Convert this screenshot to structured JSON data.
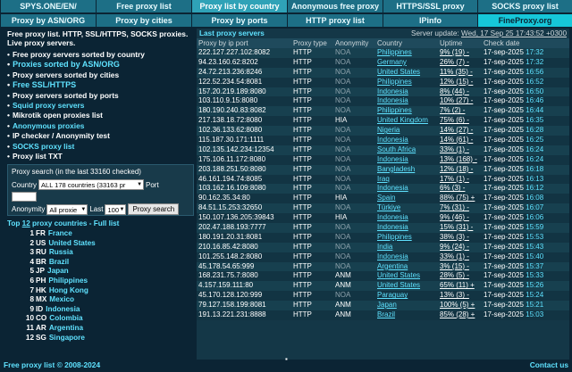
{
  "nav": {
    "row1": [
      "SPYS.ONE/EN/",
      "Free proxy list",
      "Proxy list by country",
      "Anonymous free proxy",
      "HTTPS/SSL proxy",
      "SOCKS proxy list"
    ],
    "row2": [
      "Proxy by ASN/ORG",
      "Proxy by cities",
      "Proxy by ports",
      "HTTP proxy list",
      "IPinfo",
      "FineProxy.org"
    ]
  },
  "intro": "Free proxy list. HTTP, SSL/HTTPS, SOCKS proxies. Live proxy servers.",
  "menu": [
    "Free proxy servers sorted by country",
    "Proxies sorted by ASN/ORG",
    "Proxy servers sorted by cities",
    "Free SSL/HTTPS",
    "Proxy servers sorted by ports",
    "Squid proxy servers",
    "Mikrotik open proxies list",
    "Anonymous proxies",
    "IP checker / Anonymity test",
    "SOCKS proxy list",
    "Proxy list TXT"
  ],
  "search": {
    "header": "Proxy search (in the last 33160 checked)",
    "country_label": "Country",
    "country_value": "ALL 178 countries (33163 pr",
    "port_label": "Port",
    "anonymity_label": "Anonymity",
    "anonymity_value": "All proxie",
    "last_label": "Last",
    "last_value": "100",
    "button": "Proxy search"
  },
  "top": {
    "prefix": "Top ",
    "count": "12",
    "suffix": " proxy countries - Full list",
    "countries": [
      {
        "rank": "1",
        "code": "FR",
        "name": "France"
      },
      {
        "rank": "2",
        "code": "US",
        "name": "United States"
      },
      {
        "rank": "3",
        "code": "RU",
        "name": "Russia"
      },
      {
        "rank": "4",
        "code": "BR",
        "name": "Brazil"
      },
      {
        "rank": "5",
        "code": "JP",
        "name": "Japan"
      },
      {
        "rank": "6",
        "code": "PH",
        "name": "Philippines"
      },
      {
        "rank": "7",
        "code": "HK",
        "name": "Hong Kong"
      },
      {
        "rank": "8",
        "code": "MX",
        "name": "Mexico"
      },
      {
        "rank": "9",
        "code": "ID",
        "name": "Indonesia"
      },
      {
        "rank": "10",
        "code": "CO",
        "name": "Colombia"
      },
      {
        "rank": "11",
        "code": "AR",
        "name": "Argentina"
      },
      {
        "rank": "12",
        "code": "SG",
        "name": "Singapore"
      }
    ]
  },
  "table": {
    "title": "Last proxy servers",
    "update_label": "Server update:",
    "update_value": "Wed, 17 Sep 25 17:43:52 +0300",
    "columns": [
      "Proxy by ip port",
      "Proxy type",
      "Anonymity",
      "Country",
      "Uptime",
      "Check date"
    ],
    "rows": [
      [
        "222.127.227.102:8082",
        "HTTP",
        "NOA",
        "Philippines",
        "9% (19) -",
        "17-sep-2025",
        "17:32"
      ],
      [
        "94.23.160.62:8202",
        "HTTP",
        "NOA",
        "Germany",
        "26% (7) -",
        "17-sep-2025",
        "17:32"
      ],
      [
        "24.72.213.236:8246",
        "HTTP",
        "NOA",
        "United States",
        "11% (35) -",
        "17-sep-2025",
        "16:56"
      ],
      [
        "122.52.234.54:8081",
        "HTTP",
        "NOA",
        "Philippines",
        "12% (15) -",
        "17-sep-2025",
        "16:52"
      ],
      [
        "157.20.219.189:8080",
        "HTTP",
        "NOA",
        "Indonesia",
        "8% (44) -",
        "17-sep-2025",
        "16:50"
      ],
      [
        "103.110.9.15:8080",
        "HTTP",
        "NOA",
        "Indonesia",
        "10% (27) -",
        "17-sep-2025",
        "16:46"
      ],
      [
        "180.190.240.83:8082",
        "HTTP",
        "NOA",
        "Philippines",
        "7% (2) -",
        "17-sep-2025",
        "16:44"
      ],
      [
        "217.138.18.72:8080",
        "HTTP",
        "HIA",
        "United Kingdom",
        "75% (6) -",
        "17-sep-2025",
        "16:35"
      ],
      [
        "102.36.133.62:8080",
        "HTTP",
        "NOA",
        "Nigeria",
        "14% (27) -",
        "17-sep-2025",
        "16:28"
      ],
      [
        "115.187.30.171:1111",
        "HTTP",
        "NOA",
        "Indonesia",
        "14% (61) -",
        "17-sep-2025",
        "16:25"
      ],
      [
        "102.135.142.234:12354",
        "HTTP",
        "NOA",
        "South Africa",
        "33% (1) -",
        "17-sep-2025",
        "16:24"
      ],
      [
        "175.106.11.172:8080",
        "HTTP",
        "NOA",
        "Indonesia",
        "13% (168) -",
        "17-sep-2025",
        "16:24"
      ],
      [
        "203.188.251.50:8080",
        "HTTP",
        "NOA",
        "Bangladesh",
        "12% (18) -",
        "17-sep-2025",
        "16:18"
      ],
      [
        "46.161.194.74:8085",
        "HTTP",
        "NOA",
        "Iraq",
        "17% (1) -",
        "17-sep-2025",
        "16:13"
      ],
      [
        "103.162.16.109:8080",
        "HTTP",
        "NOA",
        "Indonesia",
        "6% (3) -",
        "17-sep-2025",
        "16:12"
      ],
      [
        "90.162.35.34:80",
        "HTTP",
        "HIA",
        "Spain",
        "88% (75) +",
        "17-sep-2025",
        "16:08"
      ],
      [
        "84.51.15.253:32650",
        "HTTP",
        "NOA",
        "Türkiye",
        "7% (31) -",
        "17-sep-2025",
        "16:07"
      ],
      [
        "150.107.136.205:39843",
        "HTTP",
        "HIA",
        "Indonesia",
        "9% (46) -",
        "17-sep-2025",
        "16:06"
      ],
      [
        "202.47.188.193:7777",
        "HTTP",
        "NOA",
        "Indonesia",
        "15% (31) -",
        "17-sep-2025",
        "15:59"
      ],
      [
        "180.191.20.31:8081",
        "HTTP",
        "NOA",
        "Philippines",
        "38% (3) -",
        "17-sep-2025",
        "15:53"
      ],
      [
        "210.16.85.42:8080",
        "HTTP",
        "NOA",
        "India",
        "9% (24) -",
        "17-sep-2025",
        "15:43"
      ],
      [
        "101.255.148.2:8080",
        "HTTP",
        "NOA",
        "Indonesia",
        "33% (1) -",
        "17-sep-2025",
        "15:40"
      ],
      [
        "45.178.54.65:999",
        "HTTP",
        "NOA",
        "Argentina",
        "3% (15) -",
        "17-sep-2025",
        "15:37"
      ],
      [
        "168.231.75.7:8080",
        "HTTP",
        "ANM",
        "United States",
        "28% (5) -",
        "17-sep-2025",
        "15:33"
      ],
      [
        "4.157.159.111:80",
        "HTTP",
        "ANM",
        "United States",
        "65% (11) +",
        "17-sep-2025",
        "15:26"
      ],
      [
        "45.170.128.120:999",
        "HTTP",
        "NOA",
        "Paraguay",
        "13% (3) -",
        "17-sep-2025",
        "15:24"
      ],
      [
        "79.127.158.199:8081",
        "HTTP",
        "ANM",
        "Japan",
        "100% (5) +",
        "17-sep-2025",
        "15:21"
      ],
      [
        "191.13.221.231:8888",
        "HTTP",
        "ANM",
        "Brazil",
        "85% (28) +",
        "17-sep-2025",
        "15:03"
      ]
    ]
  },
  "footer": {
    "left": "Free proxy list © 2008-2024",
    "right": "Contact us",
    "dot": "▪"
  }
}
